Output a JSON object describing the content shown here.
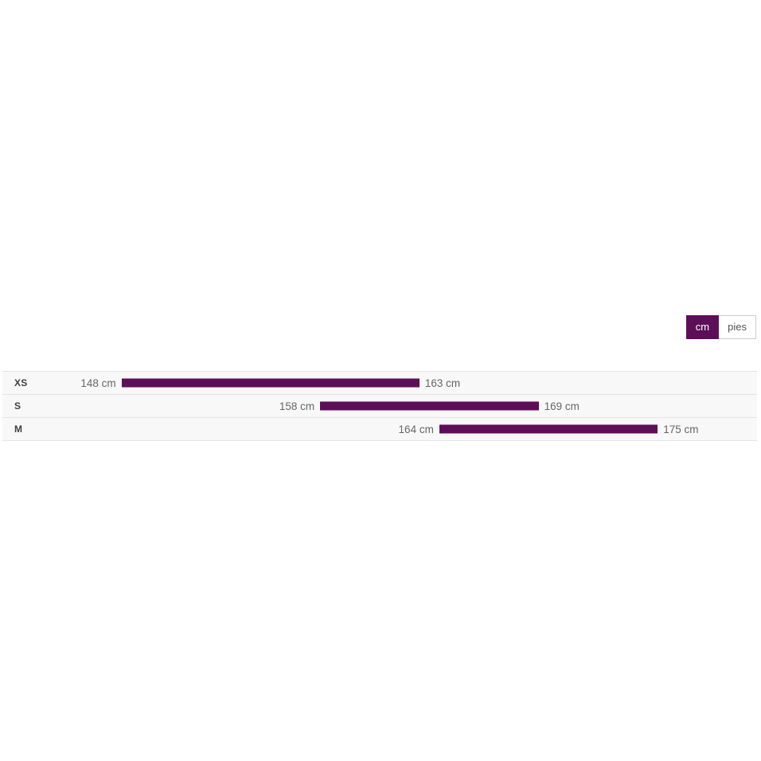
{
  "page": {
    "background": "#ffffff"
  },
  "colors": {
    "accent": "#5e0e58",
    "row_background": "#f8f8f8",
    "row_border": "#e4e4e4",
    "value_label": "#666666",
    "size_label": "#3f3f3f",
    "inactive_toggle_border": "#cccccc",
    "inactive_toggle_text": "#555555"
  },
  "unit_toggle": {
    "options": [
      {
        "label": "cm",
        "active": true
      },
      {
        "label": "pies",
        "active": false
      }
    ]
  },
  "chart_data": {
    "type": "bar",
    "subtype": "horizontal-range-bars",
    "title": "",
    "xlabel": "",
    "ylabel": "",
    "unit": "cm",
    "axis_min": 142,
    "axis_max": 180,
    "grid": false,
    "legend": false,
    "categories": [
      "XS",
      "S",
      "M"
    ],
    "series": [
      {
        "name": "XS",
        "min": 148,
        "max": 163,
        "min_label": "148 cm",
        "max_label": "163 cm"
      },
      {
        "name": "S",
        "min": 158,
        "max": 169,
        "min_label": "158 cm",
        "max_label": "169 cm"
      },
      {
        "name": "M",
        "min": 164,
        "max": 175,
        "min_label": "164 cm",
        "max_label": "175 cm"
      }
    ]
  }
}
